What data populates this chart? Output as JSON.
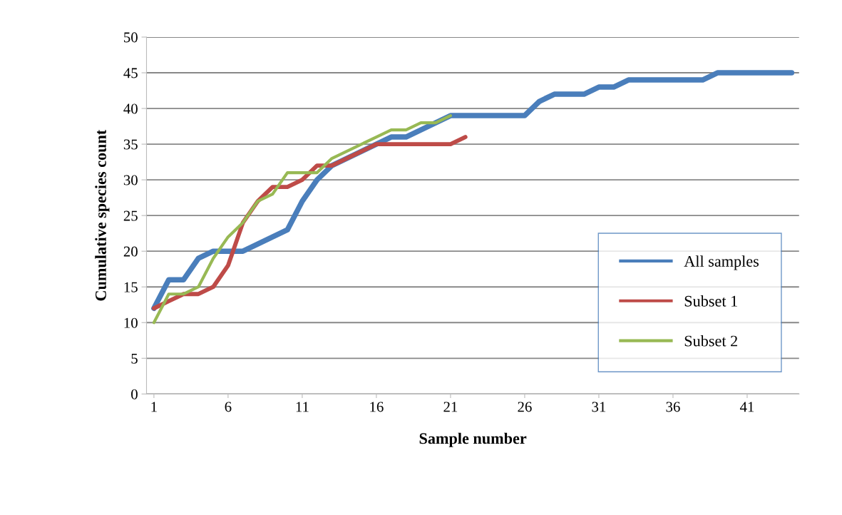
{
  "chart_data": {
    "type": "line",
    "xlabel": "Sample number",
    "ylabel": "Cumulative species count",
    "categories": [
      "1",
      null,
      null,
      null,
      null,
      "6",
      null,
      null,
      null,
      null,
      "11",
      null,
      null,
      null,
      null,
      "16",
      null,
      null,
      null,
      null,
      "21",
      null,
      null,
      null,
      null,
      "26",
      null,
      null,
      null,
      null,
      "31",
      null,
      null,
      null,
      null,
      "36",
      null,
      null,
      null,
      null,
      "41",
      null,
      null,
      null
    ],
    "series": [
      {
        "name": "All samples",
        "color": "#4a7ebb",
        "values": [
          12,
          16,
          16,
          19,
          20,
          20,
          20,
          21,
          22,
          23,
          27,
          30,
          32,
          33,
          34,
          35,
          36,
          36,
          37,
          38,
          39,
          39,
          39,
          39,
          39,
          39,
          41,
          42,
          42,
          42,
          43,
          43,
          44,
          44,
          44,
          44,
          44,
          44,
          45,
          45,
          45,
          45,
          45,
          45
        ]
      },
      {
        "name": "Subset 1",
        "color": "#be4b48",
        "values": [
          12,
          13,
          14,
          14,
          15,
          18,
          24,
          27,
          29,
          29,
          30,
          32,
          32,
          33,
          34,
          35,
          35,
          35,
          35,
          35,
          35,
          36,
          null,
          null,
          null,
          null,
          null,
          null,
          null,
          null,
          null,
          null,
          null,
          null,
          null,
          null,
          null,
          null,
          null,
          null,
          null,
          null,
          null,
          null
        ]
      },
      {
        "name": "Subset 2",
        "color": "#98b954",
        "values": [
          10,
          14,
          14,
          15,
          19,
          22,
          24,
          27,
          28,
          31,
          31,
          31,
          33,
          34,
          35,
          36,
          37,
          37,
          38,
          38,
          39,
          null,
          null,
          null,
          null,
          null,
          null,
          null,
          null,
          null,
          null,
          null,
          null,
          null,
          null,
          null,
          null,
          null,
          null,
          null,
          null,
          null,
          null,
          null
        ]
      }
    ],
    "ylim": [
      0,
      50
    ],
    "yticks": [
      0,
      5,
      10,
      15,
      20,
      25,
      30,
      35,
      40,
      45,
      50
    ],
    "grid": "y",
    "legend": "bottom right",
    "marker": "none",
    "line_style": "solid"
  }
}
